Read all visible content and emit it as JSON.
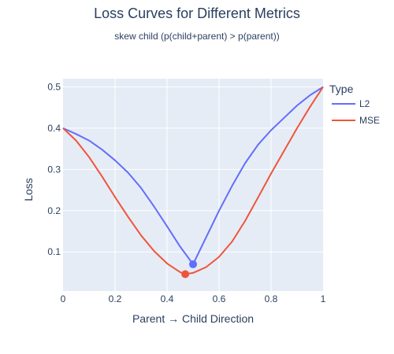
{
  "chart_data": {
    "type": "line",
    "title": "Loss Curves for Different Metrics",
    "subtitle": "skew child (p(child+parent) > p(parent))",
    "xlabel": "Parent → Child Direction",
    "ylabel": "Loss",
    "xlim": [
      0,
      1
    ],
    "ylim": [
      0.005,
      0.52
    ],
    "x_ticks": [
      0,
      0.2,
      0.4,
      0.6,
      0.8,
      1
    ],
    "x_tick_labels": [
      "0",
      "0.2",
      "0.4",
      "0.6",
      "0.8",
      "1"
    ],
    "y_ticks": [
      0.1,
      0.2,
      0.3,
      0.4,
      0.5
    ],
    "y_tick_labels": [
      "0.1",
      "0.2",
      "0.3",
      "0.4",
      "0.5"
    ],
    "grid": true,
    "legend_title": "Type",
    "legend_placement": "right",
    "series": [
      {
        "name": "L2",
        "color": "#636efa",
        "x": [
          0,
          0.05,
          0.1,
          0.15,
          0.2,
          0.25,
          0.3,
          0.35,
          0.4,
          0.45,
          0.5,
          0.55,
          0.6,
          0.65,
          0.7,
          0.75,
          0.8,
          0.85,
          0.9,
          0.95,
          1.0
        ],
        "y": [
          0.4,
          0.386,
          0.37,
          0.348,
          0.322,
          0.292,
          0.255,
          0.21,
          0.162,
          0.113,
          0.07,
          0.135,
          0.2,
          0.26,
          0.315,
          0.36,
          0.395,
          0.425,
          0.455,
          0.48,
          0.5
        ],
        "minimum": {
          "x": 0.5,
          "y": 0.07
        }
      },
      {
        "name": "MSE",
        "color": "#ef553b",
        "x": [
          0,
          0.05,
          0.1,
          0.15,
          0.2,
          0.25,
          0.3,
          0.35,
          0.4,
          0.45,
          0.47,
          0.5,
          0.55,
          0.6,
          0.65,
          0.7,
          0.75,
          0.8,
          0.85,
          0.9,
          0.95,
          1.0
        ],
        "y": [
          0.4,
          0.37,
          0.33,
          0.283,
          0.233,
          0.185,
          0.14,
          0.102,
          0.072,
          0.051,
          0.046,
          0.049,
          0.063,
          0.088,
          0.125,
          0.175,
          0.232,
          0.29,
          0.345,
          0.4,
          0.452,
          0.5
        ],
        "minimum": {
          "x": 0.47,
          "y": 0.046
        }
      }
    ]
  }
}
